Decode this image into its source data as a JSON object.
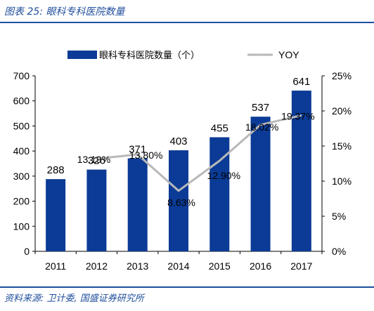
{
  "figure": {
    "title": "图表 25:  眼科专科医院数量",
    "source": "资料来源:  卫计委,  国盛证券研究所"
  },
  "colors": {
    "bar": "#0b3b96",
    "line": "#b8b8b8",
    "frame": "#1f4e9c"
  },
  "chart_data": {
    "type": "bar+line",
    "categories": [
      "2011",
      "2012",
      "2013",
      "2014",
      "2015",
      "2016",
      "2017"
    ],
    "series": [
      {
        "name": "眼科专科医院数量（个）",
        "type": "bar",
        "axis": "left",
        "values": [
          288,
          326,
          371,
          403,
          455,
          537,
          641
        ],
        "labels": [
          "288",
          "326",
          "371",
          "403",
          "455",
          "537",
          "641"
        ]
      },
      {
        "name": "YOY",
        "type": "line",
        "axis": "right",
        "values": [
          null,
          13.19,
          13.8,
          8.63,
          12.9,
          18.02,
          19.37
        ],
        "labels": [
          "",
          "13.19%",
          "13.80%",
          "8.63%",
          "12.90%",
          "18.02%",
          "19.37%"
        ]
      }
    ],
    "y_left": {
      "min": 0,
      "max": 700,
      "ticks": [
        "0",
        "100",
        "200",
        "300",
        "400",
        "500",
        "600",
        "700"
      ]
    },
    "y_right": {
      "min": 0,
      "max": 25,
      "ticks": [
        "0%",
        "5%",
        "10%",
        "15%",
        "20%",
        "25%"
      ]
    },
    "legend": "top",
    "grid": false
  }
}
